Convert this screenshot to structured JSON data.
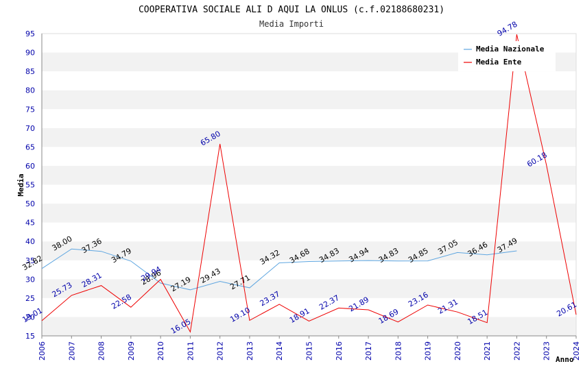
{
  "chart_data": {
    "type": "line",
    "title": "COOPERATIVA SOCIALE ALI D AQUI LA ONLUS (c.f.02188680231)",
    "subtitle": "Media Importi",
    "xlabel": "Anno",
    "ylabel": "Media",
    "ylim": [
      15,
      95
    ],
    "yticks": [
      "15",
      "20",
      "25",
      "30",
      "35",
      "40",
      "45",
      "50",
      "55",
      "60",
      "65",
      "70",
      "75",
      "80",
      "85",
      "90",
      "95"
    ],
    "categories": [
      "2006",
      "2007",
      "2008",
      "2009",
      "2010",
      "2011",
      "2012",
      "2013",
      "2014",
      "2015",
      "2016",
      "2017",
      "2018",
      "2019",
      "2020",
      "2021",
      "2022",
      "2023",
      "2024"
    ],
    "series": [
      {
        "name": "Media Nazionale",
        "color": "#5da5e0",
        "values": [
          32.82,
          38.0,
          37.36,
          34.79,
          28.96,
          27.19,
          29.43,
          27.71,
          34.32,
          34.68,
          34.83,
          34.94,
          34.83,
          34.85,
          37.05,
          36.46,
          37.49,
          null,
          null
        ],
        "labels": [
          "32.82",
          "38.00",
          "37.36",
          "34.79",
          "28.96",
          "27.19",
          "29.43",
          "27.71",
          "34.32",
          "34.68",
          "34.83",
          "34.94",
          "34.83",
          "34.85",
          "37.05",
          "36.46",
          "37.49",
          "",
          ""
        ]
      },
      {
        "name": "Media Ente",
        "color": "#ee0000",
        "values": [
          19.01,
          25.73,
          28.31,
          22.58,
          29.94,
          16.05,
          65.8,
          19.1,
          23.37,
          18.91,
          22.37,
          21.89,
          18.69,
          23.16,
          21.31,
          18.51,
          94.78,
          60.18,
          20.61
        ],
        "labels": [
          "19.01",
          "25.73",
          "28.31",
          "22.58",
          "29.94",
          "16.05",
          "65.80",
          "19.10",
          "23.37",
          "18.91",
          "22.37",
          "21.89",
          "18.69",
          "23.16",
          "21.31",
          "18.51",
          "94.78",
          "60.18",
          "20.61"
        ]
      }
    ],
    "legend_position": "top-right",
    "grid": true
  }
}
